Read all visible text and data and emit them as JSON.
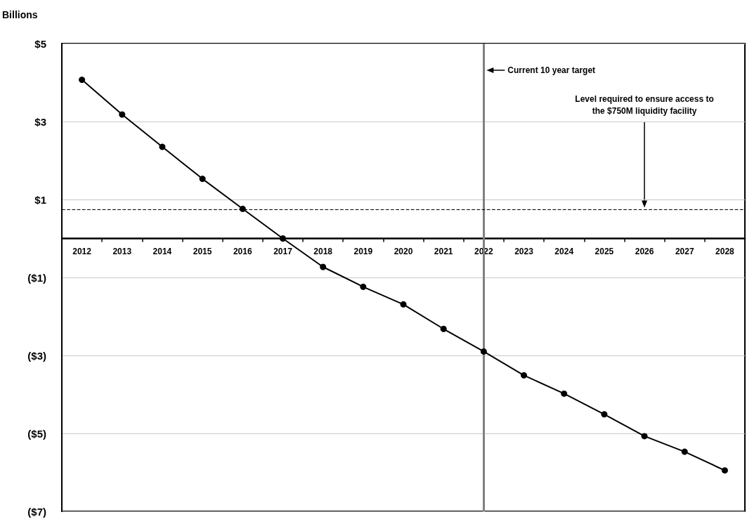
{
  "chart_data": {
    "type": "line",
    "ylabel": "Billions",
    "categories": [
      "2012",
      "2013",
      "2014",
      "2015",
      "2016",
      "2017",
      "2018",
      "2019",
      "2020",
      "2021",
      "2022",
      "2023",
      "2024",
      "2025",
      "2026",
      "2027",
      "2028"
    ],
    "series": [
      {
        "color": "#000000",
        "values": [
          4.07,
          3.18,
          2.35,
          1.53,
          0.76,
          0.0,
          -0.73,
          -1.24,
          -1.69,
          -2.32,
          -2.9,
          -3.51,
          -3.98,
          -4.51,
          -5.07,
          -5.47,
          -5.95
        ]
      }
    ],
    "ylim": [
      -7,
      5
    ],
    "yticks": [
      {
        "value": 5,
        "label": "$5"
      },
      {
        "value": 3,
        "label": "$3"
      },
      {
        "value": 1,
        "label": "$1"
      },
      {
        "value": -1,
        "label": "($1)"
      },
      {
        "value": -3,
        "label": "($3)"
      },
      {
        "value": -5,
        "label": "($5)"
      },
      {
        "value": -7,
        "label": "($7)"
      }
    ],
    "ref_lines": [
      {
        "axis": "x",
        "value": "2022",
        "label": "Current 10 year target",
        "color": "#808080",
        "line_style": "solid"
      },
      {
        "axis": "y",
        "value": 0.75,
        "label": "Level required to ensure access to\nthe $750M liquidity facility",
        "color": "#000000",
        "line_style": "dashed"
      }
    ],
    "grid": "y",
    "marker": "circle",
    "line_style": "solid"
  }
}
